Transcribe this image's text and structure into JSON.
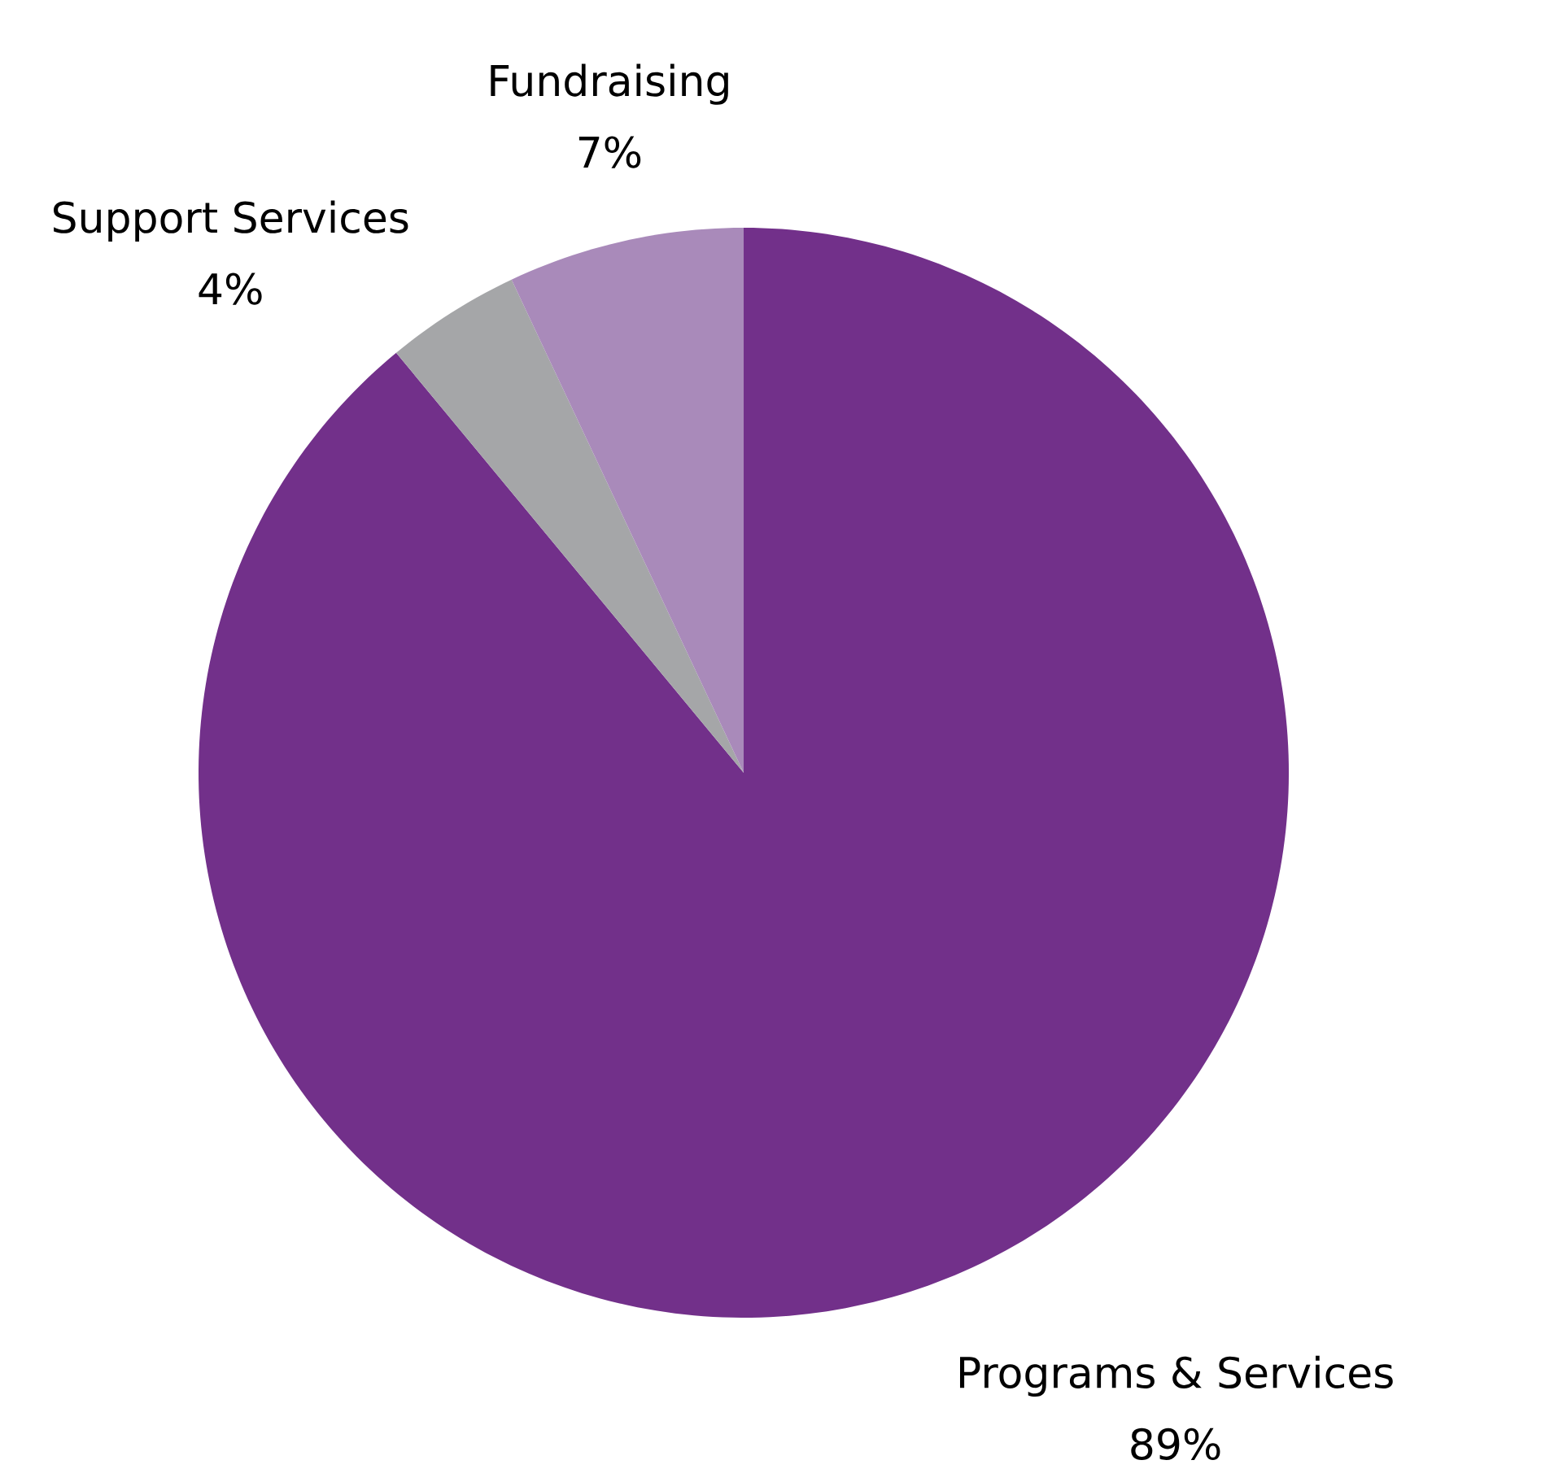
{
  "chart_data": {
    "type": "pie",
    "categories": [
      "Programs & Services",
      "Support Services",
      "Fundraising"
    ],
    "values": [
      89,
      4,
      7
    ],
    "colors": [
      "#72308a",
      "#a5a6a8",
      "#a98aba"
    ],
    "value_labels": [
      "89%",
      "4%",
      "7%"
    ]
  }
}
